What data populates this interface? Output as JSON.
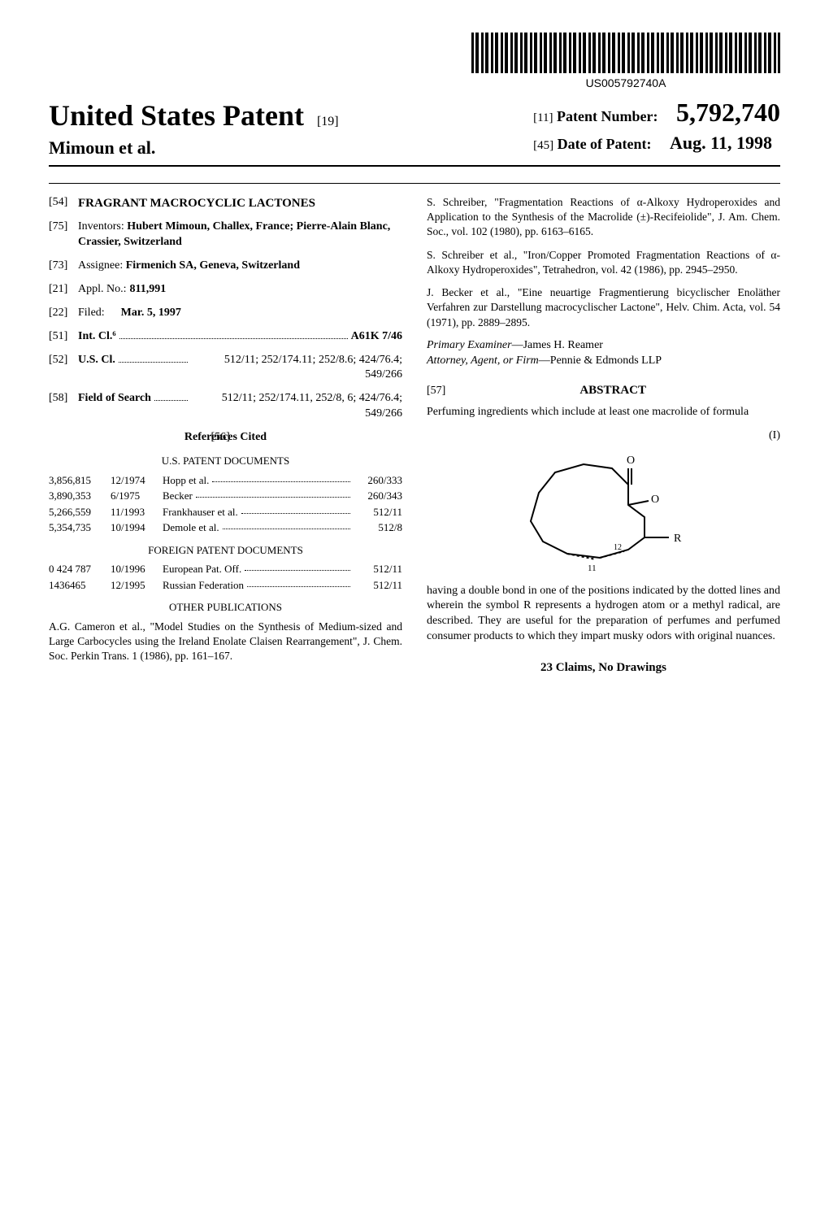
{
  "barcode_text": "US005792740A",
  "header": {
    "main_title": "United States Patent",
    "seq": "[19]",
    "authors": "Mimoun et al."
  },
  "patent_info": {
    "num_bracket": "[11]",
    "num_label": "Patent Number:",
    "num_value": "5,792,740",
    "date_bracket": "[45]",
    "date_label": "Date of Patent:",
    "date_value": "Aug. 11, 1998"
  },
  "left": {
    "f54": {
      "num": "[54]",
      "title": "FRAGRANT MACROCYCLIC LACTONES"
    },
    "f75": {
      "num": "[75]",
      "label": "Inventors:",
      "value": "Hubert Mimoun, Challex, France; Pierre-Alain Blanc, Crassier, Switzerland"
    },
    "f73": {
      "num": "[73]",
      "label": "Assignee:",
      "value": "Firmenich SA, Geneva, Switzerland"
    },
    "f21": {
      "num": "[21]",
      "label": "Appl. No.:",
      "value": "811,991"
    },
    "f22": {
      "num": "[22]",
      "label": "Filed:",
      "value": "Mar. 5, 1997"
    },
    "f51": {
      "num": "[51]",
      "label": "Int. Cl.⁶",
      "value": "A61K 7/46"
    },
    "f52": {
      "num": "[52]",
      "label": "U.S. Cl.",
      "value": "512/11; 252/174.11; 252/8.6; 424/76.4; 549/266"
    },
    "f58": {
      "num": "[58]",
      "label": "Field of Search",
      "value": "512/11; 252/174.11, 252/8, 6; 424/76.4; 549/266"
    },
    "f56": {
      "num": "[56]",
      "heading": "References Cited"
    },
    "us_docs_heading": "U.S. PATENT DOCUMENTS",
    "us_docs": [
      {
        "num": "3,856,815",
        "date": "12/1974",
        "ref": "Hopp et al.",
        "cls": "260/333"
      },
      {
        "num": "3,890,353",
        "date": "6/1975",
        "ref": "Becker",
        "cls": "260/343"
      },
      {
        "num": "5,266,559",
        "date": "11/1993",
        "ref": "Frankhauser et al.",
        "cls": "512/11"
      },
      {
        "num": "5,354,735",
        "date": "10/1994",
        "ref": "Demole et al.",
        "cls": "512/8"
      }
    ],
    "foreign_heading": "FOREIGN PATENT DOCUMENTS",
    "foreign_docs": [
      {
        "num": "0 424 787",
        "date": "10/1996",
        "ref": "European Pat. Off.",
        "cls": "512/11"
      },
      {
        "num": "1436465",
        "date": "12/1995",
        "ref": "Russian Federation",
        "cls": "512/11"
      }
    ],
    "other_pubs_heading": "OTHER PUBLICATIONS",
    "pub1": "A.G. Cameron et al., \"Model Studies on the Synthesis of Medium-sized and Large Carbocycles using the Ireland Enolate Claisen Rearrangement\", J. Chem. Soc. Perkin Trans. 1 (1986), pp. 161–167."
  },
  "right": {
    "pub2": "S. Schreiber, \"Fragmentation Reactions of α-Alkoxy Hydroperoxides and Application to the Synthesis of the Macrolide (±)-Recifeiolide\", J. Am. Chem. Soc., vol. 102 (1980), pp. 6163–6165.",
    "pub3": "S. Schreiber et al., \"Iron/Copper Promoted Fragmentation Reactions of α-Alkoxy Hydroperoxides\", Tetrahedron, vol. 42 (1986), pp. 2945–2950.",
    "pub4": "J. Becker et al., \"Eine neuartige Fragmentierung bicyclischer Enoläther Verfahren zur Darstellung macrocyclischer Lactone\", Helv. Chim. Acta, vol. 54 (1971), pp. 2889–2895.",
    "examiner_label": "Primary Examiner",
    "examiner": "—James H. Reamer",
    "attorney_label": "Attorney, Agent, or Firm",
    "attorney": "—Pennie & Edmonds LLP",
    "abstract_num": "[57]",
    "abstract_heading": "ABSTRACT",
    "abstract_pre": "Perfuming ingredients which include at least one macrolide of formula",
    "formula_marker": "(I)",
    "abstract_post": "having a double bond in one of the positions indicated by the dotted lines and wherein the symbol R represents a hydrogen atom or a methyl radical, are described. They are useful for the preparation of perfumes and perfumed consumer products to which they impart musky odors with original nuances.",
    "claims": "23 Claims, No Drawings"
  },
  "structure": {
    "r_label": "R",
    "n_label": "11",
    "o1": "O",
    "o2": "O",
    "twelve": "12"
  }
}
